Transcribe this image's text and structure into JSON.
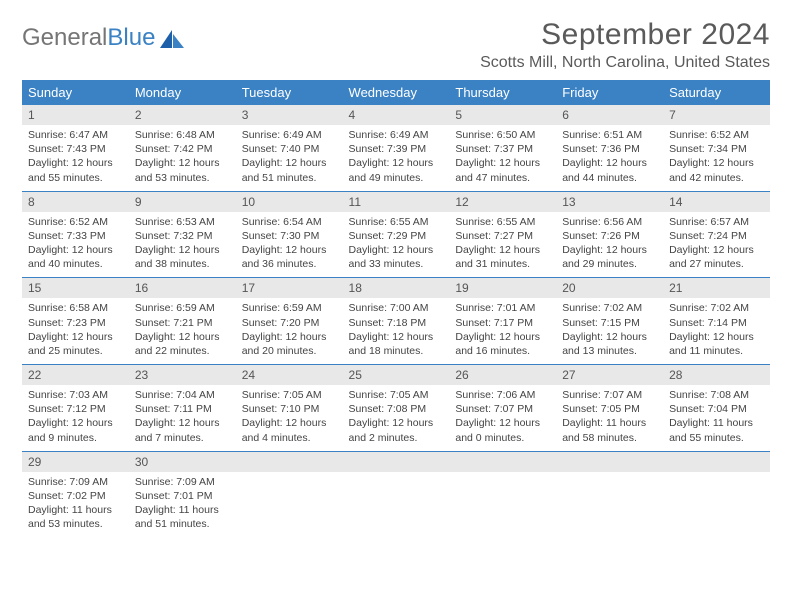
{
  "logo": {
    "text1": "General",
    "text2": "Blue"
  },
  "title": "September 2024",
  "location": "Scotts Mill, North Carolina, United States",
  "colors": {
    "header_bg": "#3b82c4",
    "header_fg": "#ffffff",
    "daynum_bg": "#e8e8e8",
    "rule": "#3b82c4",
    "text": "#444444",
    "title_color": "#5a5a5a"
  },
  "weekdays": [
    "Sunday",
    "Monday",
    "Tuesday",
    "Wednesday",
    "Thursday",
    "Friday",
    "Saturday"
  ],
  "weeks": [
    [
      {
        "n": "1",
        "sr": "Sunrise: 6:47 AM",
        "ss": "Sunset: 7:43 PM",
        "d1": "Daylight: 12 hours",
        "d2": "and 55 minutes."
      },
      {
        "n": "2",
        "sr": "Sunrise: 6:48 AM",
        "ss": "Sunset: 7:42 PM",
        "d1": "Daylight: 12 hours",
        "d2": "and 53 minutes."
      },
      {
        "n": "3",
        "sr": "Sunrise: 6:49 AM",
        "ss": "Sunset: 7:40 PM",
        "d1": "Daylight: 12 hours",
        "d2": "and 51 minutes."
      },
      {
        "n": "4",
        "sr": "Sunrise: 6:49 AM",
        "ss": "Sunset: 7:39 PM",
        "d1": "Daylight: 12 hours",
        "d2": "and 49 minutes."
      },
      {
        "n": "5",
        "sr": "Sunrise: 6:50 AM",
        "ss": "Sunset: 7:37 PM",
        "d1": "Daylight: 12 hours",
        "d2": "and 47 minutes."
      },
      {
        "n": "6",
        "sr": "Sunrise: 6:51 AM",
        "ss": "Sunset: 7:36 PM",
        "d1": "Daylight: 12 hours",
        "d2": "and 44 minutes."
      },
      {
        "n": "7",
        "sr": "Sunrise: 6:52 AM",
        "ss": "Sunset: 7:34 PM",
        "d1": "Daylight: 12 hours",
        "d2": "and 42 minutes."
      }
    ],
    [
      {
        "n": "8",
        "sr": "Sunrise: 6:52 AM",
        "ss": "Sunset: 7:33 PM",
        "d1": "Daylight: 12 hours",
        "d2": "and 40 minutes."
      },
      {
        "n": "9",
        "sr": "Sunrise: 6:53 AM",
        "ss": "Sunset: 7:32 PM",
        "d1": "Daylight: 12 hours",
        "d2": "and 38 minutes."
      },
      {
        "n": "10",
        "sr": "Sunrise: 6:54 AM",
        "ss": "Sunset: 7:30 PM",
        "d1": "Daylight: 12 hours",
        "d2": "and 36 minutes."
      },
      {
        "n": "11",
        "sr": "Sunrise: 6:55 AM",
        "ss": "Sunset: 7:29 PM",
        "d1": "Daylight: 12 hours",
        "d2": "and 33 minutes."
      },
      {
        "n": "12",
        "sr": "Sunrise: 6:55 AM",
        "ss": "Sunset: 7:27 PM",
        "d1": "Daylight: 12 hours",
        "d2": "and 31 minutes."
      },
      {
        "n": "13",
        "sr": "Sunrise: 6:56 AM",
        "ss": "Sunset: 7:26 PM",
        "d1": "Daylight: 12 hours",
        "d2": "and 29 minutes."
      },
      {
        "n": "14",
        "sr": "Sunrise: 6:57 AM",
        "ss": "Sunset: 7:24 PM",
        "d1": "Daylight: 12 hours",
        "d2": "and 27 minutes."
      }
    ],
    [
      {
        "n": "15",
        "sr": "Sunrise: 6:58 AM",
        "ss": "Sunset: 7:23 PM",
        "d1": "Daylight: 12 hours",
        "d2": "and 25 minutes."
      },
      {
        "n": "16",
        "sr": "Sunrise: 6:59 AM",
        "ss": "Sunset: 7:21 PM",
        "d1": "Daylight: 12 hours",
        "d2": "and 22 minutes."
      },
      {
        "n": "17",
        "sr": "Sunrise: 6:59 AM",
        "ss": "Sunset: 7:20 PM",
        "d1": "Daylight: 12 hours",
        "d2": "and 20 minutes."
      },
      {
        "n": "18",
        "sr": "Sunrise: 7:00 AM",
        "ss": "Sunset: 7:18 PM",
        "d1": "Daylight: 12 hours",
        "d2": "and 18 minutes."
      },
      {
        "n": "19",
        "sr": "Sunrise: 7:01 AM",
        "ss": "Sunset: 7:17 PM",
        "d1": "Daylight: 12 hours",
        "d2": "and 16 minutes."
      },
      {
        "n": "20",
        "sr": "Sunrise: 7:02 AM",
        "ss": "Sunset: 7:15 PM",
        "d1": "Daylight: 12 hours",
        "d2": "and 13 minutes."
      },
      {
        "n": "21",
        "sr": "Sunrise: 7:02 AM",
        "ss": "Sunset: 7:14 PM",
        "d1": "Daylight: 12 hours",
        "d2": "and 11 minutes."
      }
    ],
    [
      {
        "n": "22",
        "sr": "Sunrise: 7:03 AM",
        "ss": "Sunset: 7:12 PM",
        "d1": "Daylight: 12 hours",
        "d2": "and 9 minutes."
      },
      {
        "n": "23",
        "sr": "Sunrise: 7:04 AM",
        "ss": "Sunset: 7:11 PM",
        "d1": "Daylight: 12 hours",
        "d2": "and 7 minutes."
      },
      {
        "n": "24",
        "sr": "Sunrise: 7:05 AM",
        "ss": "Sunset: 7:10 PM",
        "d1": "Daylight: 12 hours",
        "d2": "and 4 minutes."
      },
      {
        "n": "25",
        "sr": "Sunrise: 7:05 AM",
        "ss": "Sunset: 7:08 PM",
        "d1": "Daylight: 12 hours",
        "d2": "and 2 minutes."
      },
      {
        "n": "26",
        "sr": "Sunrise: 7:06 AM",
        "ss": "Sunset: 7:07 PM",
        "d1": "Daylight: 12 hours",
        "d2": "and 0 minutes."
      },
      {
        "n": "27",
        "sr": "Sunrise: 7:07 AM",
        "ss": "Sunset: 7:05 PM",
        "d1": "Daylight: 11 hours",
        "d2": "and 58 minutes."
      },
      {
        "n": "28",
        "sr": "Sunrise: 7:08 AM",
        "ss": "Sunset: 7:04 PM",
        "d1": "Daylight: 11 hours",
        "d2": "and 55 minutes."
      }
    ],
    [
      {
        "n": "29",
        "sr": "Sunrise: 7:09 AM",
        "ss": "Sunset: 7:02 PM",
        "d1": "Daylight: 11 hours",
        "d2": "and 53 minutes."
      },
      {
        "n": "30",
        "sr": "Sunrise: 7:09 AM",
        "ss": "Sunset: 7:01 PM",
        "d1": "Daylight: 11 hours",
        "d2": "and 51 minutes."
      },
      null,
      null,
      null,
      null,
      null
    ]
  ]
}
